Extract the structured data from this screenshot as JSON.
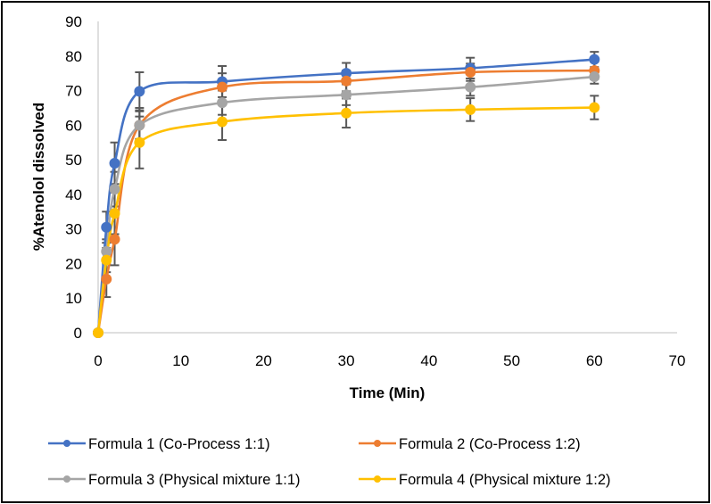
{
  "chart_data": {
    "type": "scatter",
    "subtype": "scatter-smooth-lines-with-markers-and-error-bars",
    "title": "",
    "xlabel": "Time (Min)",
    "ylabel": "%Atenolol dissolved",
    "xlim": [
      0,
      70
    ],
    "ylim": [
      0,
      90
    ],
    "xticks": [
      0,
      10,
      20,
      30,
      40,
      50,
      60,
      70
    ],
    "yticks": [
      0,
      10,
      20,
      30,
      40,
      50,
      60,
      70,
      80,
      90
    ],
    "xtick_labels": [
      "0",
      "10",
      "20",
      "30",
      "40",
      "50",
      "60",
      "70"
    ],
    "ytick_labels": [
      "0",
      "10",
      "20",
      "30",
      "40",
      "50",
      "60",
      "70",
      "80",
      "90"
    ],
    "grid": false,
    "legend_position": "bottom",
    "x": [
      0,
      1,
      2,
      5,
      15,
      30,
      45,
      60
    ],
    "series": [
      {
        "name": "Formula 1 (Co-Process 1:1)",
        "color": "#4472C4",
        "values": [
          0,
          30.5,
          49,
          69.8,
          72.6,
          75,
          76.5,
          79
        ],
        "error": [
          0,
          4.5,
          6,
          5.5,
          4.5,
          3,
          3,
          2.2
        ]
      },
      {
        "name": "Formula 2 (Co-Process 1:2)",
        "color": "#ED7D31",
        "values": [
          0,
          15.5,
          27,
          60,
          71,
          72.8,
          75.3,
          75.8
        ],
        "error": [
          0,
          5.2,
          7.5,
          5,
          4,
          3,
          2.5,
          2.5
        ]
      },
      {
        "name": "Formula 3 (Physical mixture 1:1)",
        "color": "#A5A5A5",
        "values": [
          0,
          23.5,
          41.5,
          60,
          66.5,
          68.8,
          71,
          74
        ],
        "error": [
          0,
          3.5,
          5,
          4,
          3.5,
          3,
          2.5,
          2
        ]
      },
      {
        "name": "Formula 4 (Physical mixture 1:2)",
        "color": "#FFC000",
        "values": [
          0,
          21,
          34.5,
          55,
          61,
          63.5,
          64.5,
          65.1
        ],
        "error": [
          0,
          3.5,
          6,
          7.5,
          5.3,
          4.2,
          3.3,
          3.4
        ]
      }
    ],
    "error_bar_color": "#595959",
    "axis_color": "#BFBFBF"
  }
}
